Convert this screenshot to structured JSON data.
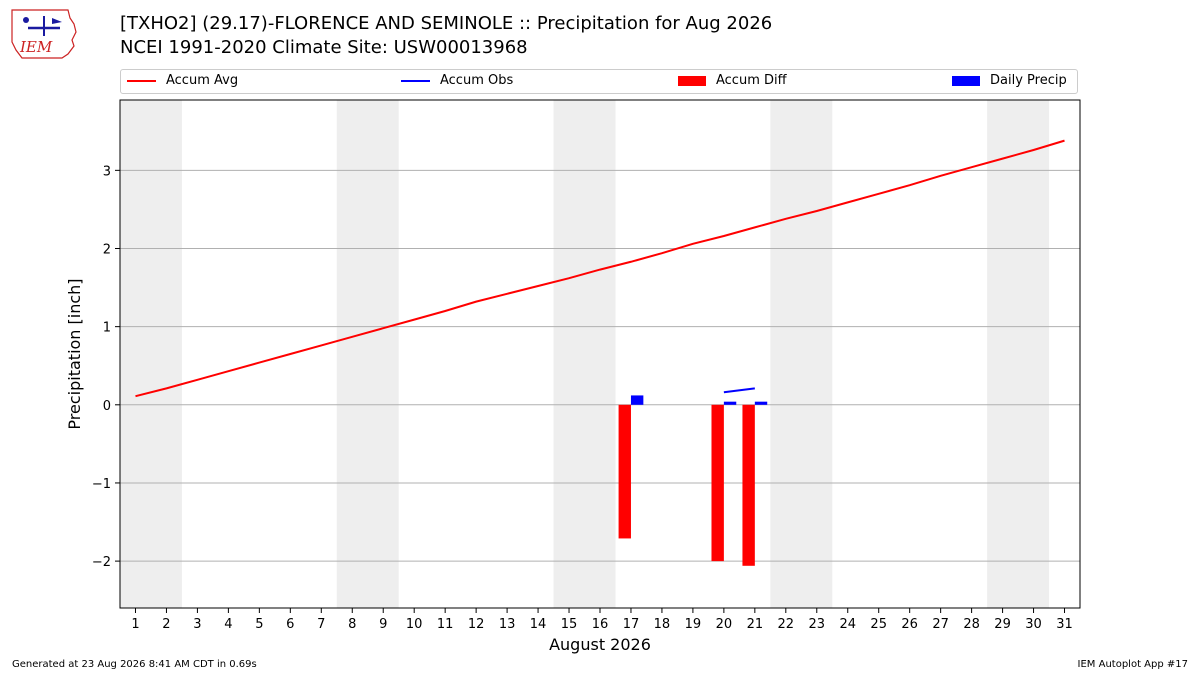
{
  "header": {
    "logo_text": "IEM",
    "title_line1": "[TXHO2] (29.17)-FLORENCE AND SEMINOLE :: Precipitation for Aug 2026",
    "title_line2": "NCEI 1991-2020 Climate Site: USW00013968"
  },
  "legend": {
    "placement": "top",
    "items": [
      {
        "label": "Accum Avg",
        "kind": "line",
        "color": "#ff0000"
      },
      {
        "label": "Accum Obs",
        "kind": "line",
        "color": "#0000ff"
      },
      {
        "label": "Accum Diff",
        "kind": "bar",
        "color": "#ff0000"
      },
      {
        "label": "Daily Precip",
        "kind": "bar",
        "color": "#0000ff"
      }
    ]
  },
  "footer": {
    "left": "Generated at 23 Aug 2026 8:41 AM CDT in 0.69s",
    "right": "IEM Autoplot App #17"
  },
  "chart_data": {
    "type": "bar",
    "xlabel": "August 2026",
    "ylabel": "Precipitation [inch]",
    "xlim": [
      0.5,
      31.5
    ],
    "ylim": [
      -2.6,
      3.9
    ],
    "xticks": [
      1,
      2,
      3,
      4,
      5,
      6,
      7,
      8,
      9,
      10,
      11,
      12,
      13,
      14,
      15,
      16,
      17,
      18,
      19,
      20,
      21,
      22,
      23,
      24,
      25,
      26,
      27,
      28,
      29,
      30,
      31
    ],
    "yticks": [
      -2,
      -1,
      0,
      1,
      2,
      3
    ],
    "ytick_labels": [
      "−2",
      "−1",
      "0",
      "1",
      "2",
      "3"
    ],
    "grid": "horizontal",
    "weekend_shading": [
      [
        0.5,
        2.5
      ],
      [
        7.5,
        9.5
      ],
      [
        14.5,
        16.5
      ],
      [
        21.5,
        23.5
      ],
      [
        28.5,
        30.5
      ]
    ],
    "shading_color": "#eeeeee",
    "series": [
      {
        "name": "Accum Avg",
        "kind": "line",
        "color": "#ff0000",
        "x": [
          1,
          2,
          3,
          4,
          5,
          6,
          7,
          8,
          9,
          10,
          11,
          12,
          13,
          14,
          15,
          16,
          17,
          18,
          19,
          20,
          21,
          22,
          23,
          24,
          25,
          26,
          27,
          28,
          29,
          30,
          31
        ],
        "values": [
          0.11,
          0.21,
          0.32,
          0.43,
          0.54,
          0.65,
          0.76,
          0.87,
          0.98,
          1.09,
          1.2,
          1.32,
          1.42,
          1.52,
          1.62,
          1.73,
          1.83,
          1.94,
          2.06,
          2.16,
          2.27,
          2.38,
          2.48,
          2.59,
          2.7,
          2.81,
          2.93,
          3.04,
          3.15,
          3.26,
          3.38
        ]
      },
      {
        "name": "Accum Obs",
        "kind": "line",
        "color": "#0000ff",
        "x": [
          20,
          21
        ],
        "values": [
          0.16,
          0.21
        ]
      },
      {
        "name": "Accum Diff",
        "kind": "bar",
        "color": "#ff0000",
        "x": [
          17,
          20,
          21
        ],
        "values": [
          -1.71,
          -2.0,
          -2.06
        ]
      },
      {
        "name": "Daily Precip",
        "kind": "bar",
        "color": "#0000ff",
        "x": [
          17,
          20,
          21
        ],
        "values": [
          0.12,
          0.04,
          0.04
        ]
      }
    ]
  }
}
